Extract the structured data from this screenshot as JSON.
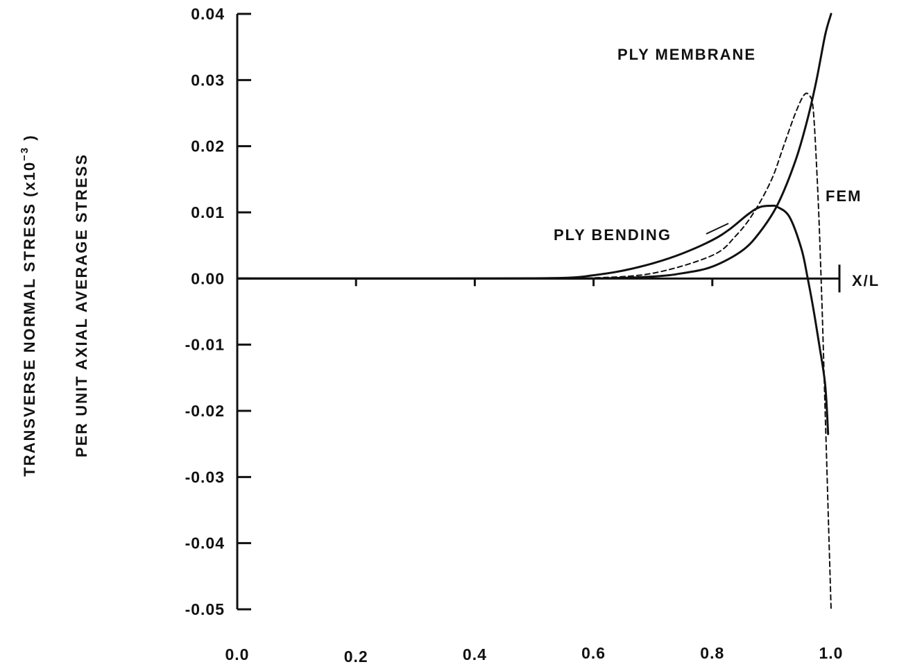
{
  "chart_data": {
    "type": "line",
    "title": "",
    "xlabel": "X/L",
    "ylabel_line1": "TRANSVERSE NORMAL STRESS (x10",
    "ylabel_exponent": "−3",
    "ylabel_close": " )",
    "ylabel_line2": "PER UNIT AXIAL AVERAGE STRESS",
    "xlim": [
      0.0,
      1.0
    ],
    "ylim": [
      -0.05,
      0.04
    ],
    "x_ticks": [
      0.0,
      0.2,
      0.4,
      0.6,
      0.8,
      1.0
    ],
    "x_tick_labels": [
      "0.0",
      "0.2",
      "0.4",
      "0.6",
      "0.8",
      "1.0"
    ],
    "y_ticks": [
      0.04,
      0.03,
      0.02,
      0.01,
      0.0,
      -0.01,
      -0.02,
      -0.03,
      -0.04,
      -0.05
    ],
    "y_tick_labels": [
      "0.04",
      "0.03",
      "0.02",
      "0.01",
      "0.00",
      "-0.01",
      "-0.02",
      "-0.03",
      "-0.04",
      "-0.05"
    ],
    "grid": false,
    "series": [
      {
        "name": "PLY MEMBRANE",
        "style": "solid",
        "color": "#111111",
        "x": [
          0.0,
          0.4,
          0.5,
          0.6,
          0.7,
          0.75,
          0.8,
          0.85,
          0.88,
          0.91,
          0.94,
          0.96,
          0.975,
          0.99,
          1.0
        ],
        "y": [
          0.0,
          0.0,
          0.0,
          0.0,
          0.0003,
          0.0008,
          0.0018,
          0.0042,
          0.007,
          0.0112,
          0.0178,
          0.024,
          0.0298,
          0.0368,
          0.04
        ]
      },
      {
        "name": "PLY BENDING",
        "style": "solid",
        "color": "#111111",
        "x": [
          0.0,
          0.4,
          0.55,
          0.6,
          0.65,
          0.7,
          0.75,
          0.8,
          0.83,
          0.86,
          0.88,
          0.9,
          0.91,
          0.93,
          0.95,
          0.96,
          0.97,
          0.98,
          0.99,
          0.995
        ],
        "y": [
          0.0,
          0.0,
          0.0001,
          0.0005,
          0.0012,
          0.0023,
          0.0038,
          0.0058,
          0.0075,
          0.0097,
          0.0108,
          0.011,
          0.0108,
          0.0093,
          0.0045,
          0.0003,
          -0.0045,
          -0.01,
          -0.016,
          -0.0235
        ]
      },
      {
        "name": "FEM",
        "style": "dashed",
        "color": "#111111",
        "x": [
          0.0,
          0.4,
          0.5,
          0.6,
          0.7,
          0.8,
          0.84,
          0.87,
          0.9,
          0.92,
          0.94,
          0.955,
          0.965,
          0.97,
          0.975,
          0.98,
          0.985,
          0.99,
          0.995,
          1.0
        ],
        "y": [
          0.0,
          0.0,
          0.0,
          0.0001,
          0.0008,
          0.0035,
          0.0065,
          0.01,
          0.015,
          0.02,
          0.025,
          0.0278,
          0.0275,
          0.0255,
          0.018,
          0.008,
          -0.005,
          -0.02,
          -0.035,
          -0.05
        ]
      }
    ],
    "annotations": [
      "PLY MEMBRANE",
      "PLY BENDING",
      "FEM"
    ]
  }
}
